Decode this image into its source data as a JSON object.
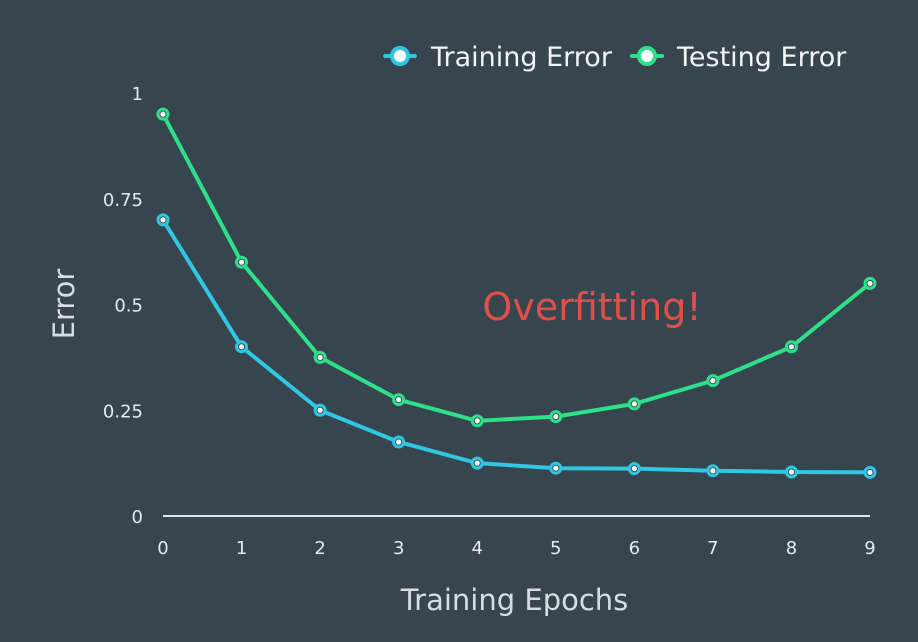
{
  "chart_data": {
    "type": "line",
    "title": "",
    "xlabel": "Training Epochs",
    "ylabel": "Error",
    "x": [
      0,
      1,
      2,
      3,
      4,
      5,
      6,
      7,
      8,
      9
    ],
    "xlim": [
      0,
      9
    ],
    "ylim": [
      0,
      1
    ],
    "x_ticks": [
      "0",
      "1",
      "2",
      "3",
      "4",
      "5",
      "6",
      "7",
      "8",
      "9"
    ],
    "y_ticks": [
      "0",
      "0.25",
      "0.5",
      "0.75",
      "1"
    ],
    "y_tick_values": [
      0,
      0.25,
      0.5,
      0.75,
      1
    ],
    "grid": false,
    "legend_position": "top-right",
    "series": [
      {
        "name": "Training Error",
        "color": "#30c7e3",
        "values": [
          0.7,
          0.4,
          0.25,
          0.175,
          0.125,
          0.113,
          0.112,
          0.107,
          0.104,
          0.103
        ]
      },
      {
        "name": "Testing Error",
        "color": "#2ee08a",
        "values": [
          0.95,
          0.6,
          0.375,
          0.275,
          0.225,
          0.235,
          0.265,
          0.32,
          0.4,
          0.55
        ]
      }
    ],
    "annotations": [
      {
        "text": "Overfitting!",
        "color": "#e0504b"
      }
    ]
  },
  "colors": {
    "background": "#37454f",
    "axis_line": "#dfe4e8"
  }
}
